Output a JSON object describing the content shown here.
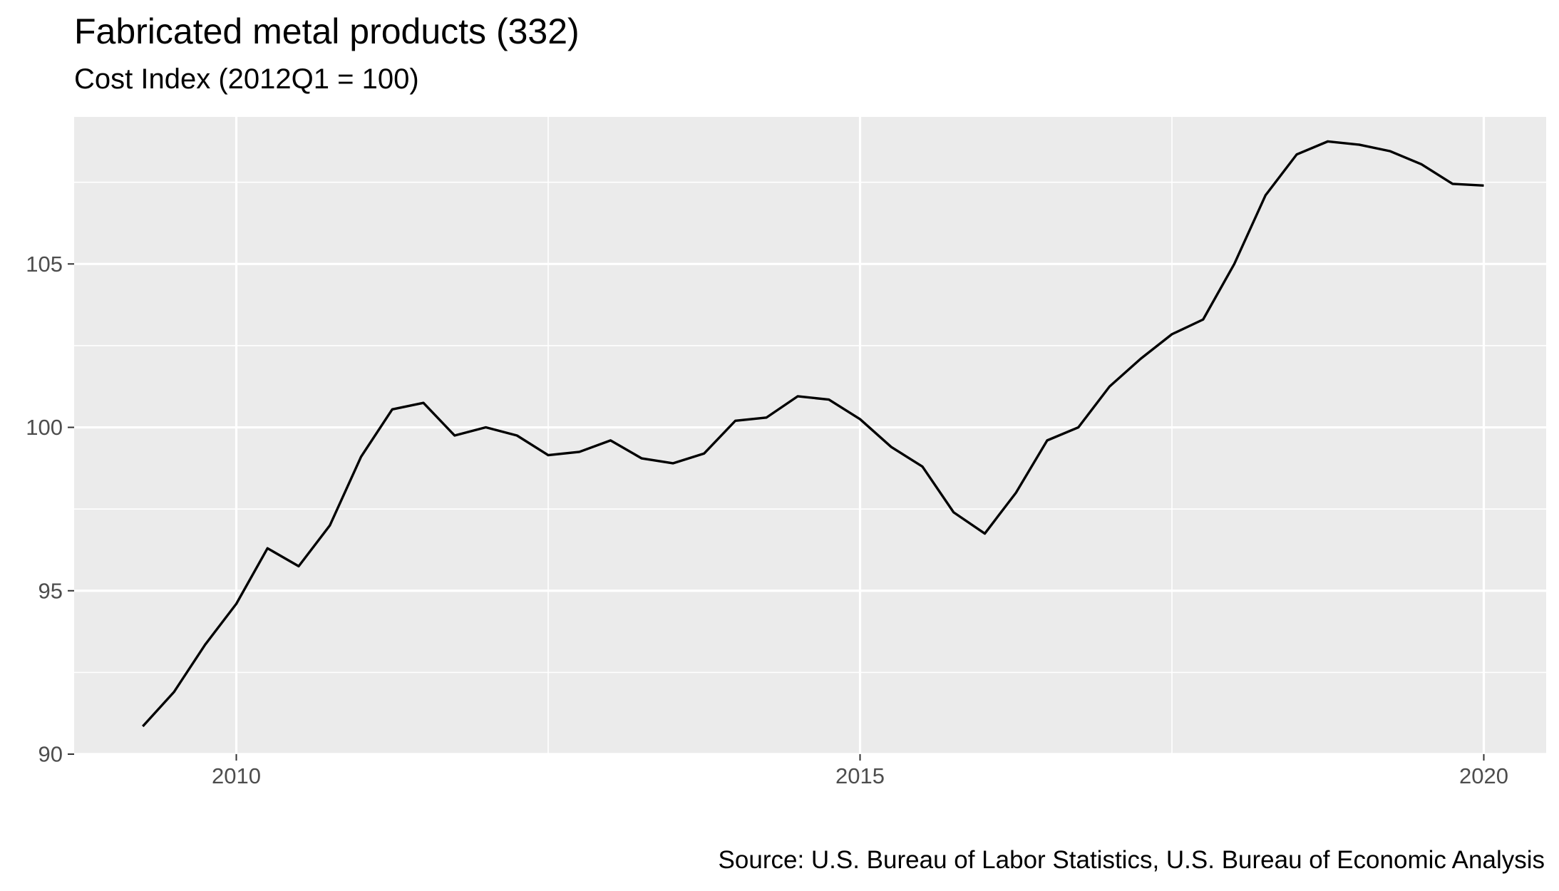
{
  "chart_data": {
    "type": "line",
    "title": "Fabricated metal products (332)",
    "subtitle": "Cost Index (2012Q1 = 100)",
    "caption": "Source: U.S. Bureau of Labor Statistics, U.S. Bureau of Economic Analysis",
    "xlabel": "",
    "ylabel": "",
    "xlim": [
      2008.7,
      2020.5
    ],
    "ylim": [
      90,
      109.5
    ],
    "grid": true,
    "legend": "none",
    "x_ticks": [
      2010,
      2015,
      2020
    ],
    "x_tick_labels": [
      "2010",
      "2015",
      "2020"
    ],
    "x_minor_ticks": [
      2012.5,
      2017.5
    ],
    "y_ticks": [
      90,
      95,
      100,
      105
    ],
    "y_tick_labels": [
      "90",
      "95",
      "100",
      "105"
    ],
    "y_minor_ticks": [
      92.5,
      97.5,
      102.5,
      107.5
    ],
    "colors": {
      "panel": "#ebebeb",
      "grid": "#ffffff",
      "line": "#000000",
      "tick_text": "#4d4d4d",
      "tick": "#333333"
    },
    "series": [
      {
        "x": [
          2009.25,
          2009.5,
          2009.75,
          2010.0,
          2010.25,
          2010.5,
          2010.75,
          2011.0,
          2011.25,
          2011.5,
          2011.75,
          2012.0,
          2012.25,
          2012.5,
          2012.75,
          2013.0,
          2013.25,
          2013.5,
          2013.75,
          2014.0,
          2014.25,
          2014.5,
          2014.75,
          2015.0,
          2015.25,
          2015.5,
          2015.75,
          2016.0,
          2016.25,
          2016.5,
          2016.75,
          2017.0,
          2017.25,
          2017.5,
          2017.75,
          2018.0,
          2018.25,
          2018.5,
          2018.75,
          2019.0,
          2019.25,
          2019.5,
          2019.75,
          2020.0
        ],
        "values": [
          90.85,
          91.9,
          93.35,
          94.6,
          96.3,
          95.75,
          97.0,
          99.1,
          100.55,
          100.75,
          99.75,
          100.0,
          99.75,
          99.15,
          99.25,
          99.6,
          99.05,
          98.9,
          99.2,
          100.2,
          100.3,
          100.95,
          100.85,
          100.25,
          99.4,
          98.8,
          97.4,
          96.75,
          98.0,
          99.6,
          100.0,
          101.25,
          102.1,
          102.85,
          103.3,
          105.0,
          107.1,
          108.35,
          108.75,
          108.65,
          108.45,
          108.05,
          107.45,
          107.4
        ]
      }
    ]
  }
}
